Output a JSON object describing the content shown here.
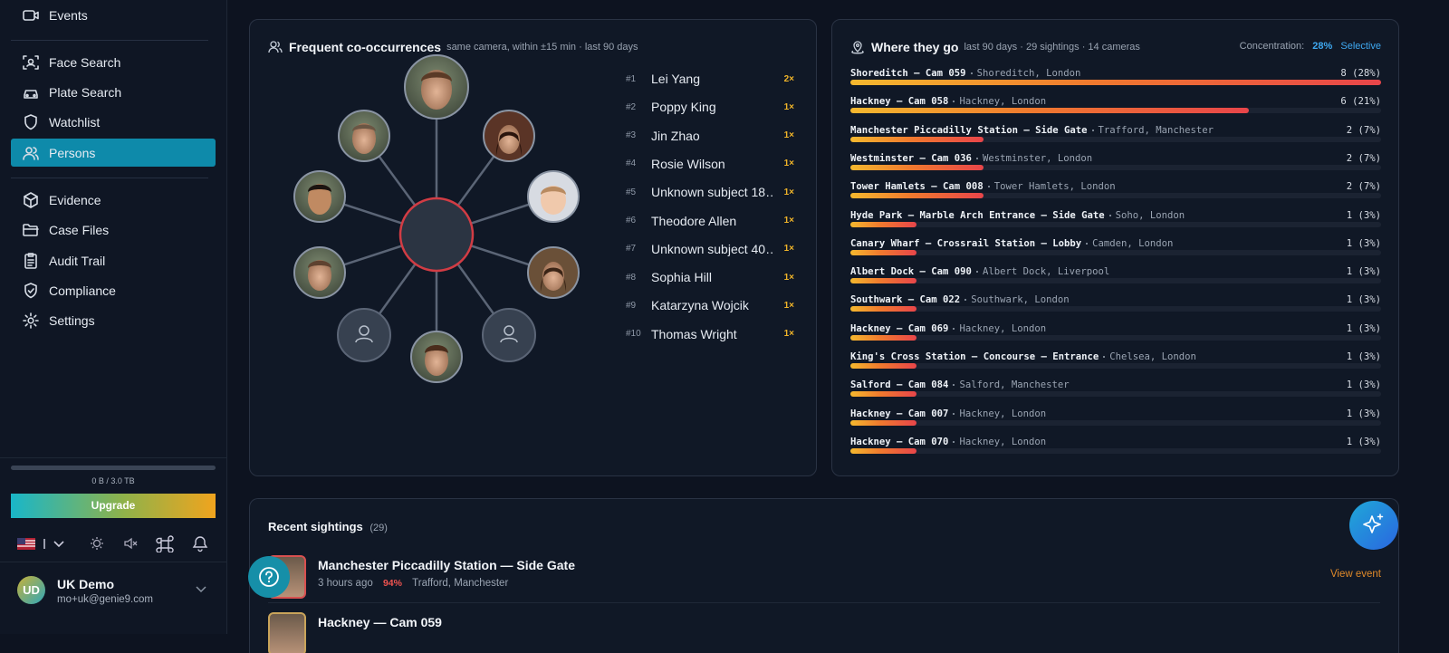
{
  "sidebar": {
    "nav": [
      {
        "label": "Events"
      },
      {
        "label": "Face Search"
      },
      {
        "label": "Plate Search"
      },
      {
        "label": "Watchlist"
      },
      {
        "label": "Persons",
        "active": true
      },
      {
        "label": "Evidence"
      },
      {
        "label": "Case Files"
      },
      {
        "label": "Audit Trail"
      },
      {
        "label": "Compliance"
      },
      {
        "label": "Settings"
      }
    ],
    "storage_label": "0 B / 3.0 TB",
    "upgrade": "Upgrade",
    "user": {
      "initials": "UD",
      "name": "UK Demo",
      "email": "mo+uk@genie9.com"
    }
  },
  "co_occurrences": {
    "title": "Frequent co-occurrences",
    "subtitle": "same camera, within ±15 min · last 90 days",
    "items": [
      {
        "rank": "#1",
        "name": "Lei Yang",
        "count": "2×"
      },
      {
        "rank": "#2",
        "name": "Poppy King",
        "count": "1×"
      },
      {
        "rank": "#3",
        "name": "Jin Zhao",
        "count": "1×"
      },
      {
        "rank": "#4",
        "name": "Rosie Wilson",
        "count": "1×"
      },
      {
        "rank": "#5",
        "name": "Unknown subject 18…",
        "count": "1×"
      },
      {
        "rank": "#6",
        "name": "Theodore Allen",
        "count": "1×"
      },
      {
        "rank": "#7",
        "name": "Unknown subject 40…",
        "count": "1×"
      },
      {
        "rank": "#8",
        "name": "Sophia Hill",
        "count": "1×"
      },
      {
        "rank": "#9",
        "name": "Katarzyna Wojcik",
        "count": "1×"
      },
      {
        "rank": "#10",
        "name": "Thomas Wright",
        "count": "1×"
      }
    ]
  },
  "where_they_go": {
    "title": "Where they go",
    "subtitle": "last 90 days · 29 sightings · 14 cameras",
    "concentration_label": "Concentration:",
    "concentration_value": "28%",
    "concentration_tag": "Selective",
    "rows": [
      {
        "camera": "Shoreditch — Cam 059",
        "location": "Shoreditch, London",
        "count": 8,
        "count_label": "8 (28%)"
      },
      {
        "camera": "Hackney — Cam 058",
        "location": "Hackney, London",
        "count": 6,
        "count_label": "6 (21%)"
      },
      {
        "camera": "Manchester Piccadilly Station — Side Gate",
        "location": "Trafford, Manchester",
        "count": 2,
        "count_label": "2 (7%)"
      },
      {
        "camera": "Westminster — Cam 036",
        "location": "Westminster, London",
        "count": 2,
        "count_label": "2 (7%)"
      },
      {
        "camera": "Tower Hamlets — Cam 008",
        "location": "Tower Hamlets, London",
        "count": 2,
        "count_label": "2 (7%)"
      },
      {
        "camera": "Hyde Park — Marble Arch Entrance — Side Gate",
        "location": "Soho, London",
        "count": 1,
        "count_label": "1 (3%)"
      },
      {
        "camera": "Canary Wharf — Crossrail Station — Lobby",
        "location": "Camden, London",
        "count": 1,
        "count_label": "1 (3%)"
      },
      {
        "camera": "Albert Dock — Cam 090",
        "location": "Albert Dock, Liverpool",
        "count": 1,
        "count_label": "1 (3%)"
      },
      {
        "camera": "Southwark — Cam 022",
        "location": "Southwark, London",
        "count": 1,
        "count_label": "1 (3%)"
      },
      {
        "camera": "Hackney — Cam 069",
        "location": "Hackney, London",
        "count": 1,
        "count_label": "1 (3%)"
      },
      {
        "camera": "King's Cross Station — Concourse — Entrance",
        "location": "Chelsea, London",
        "count": 1,
        "count_label": "1 (3%)"
      },
      {
        "camera": "Salford — Cam 084",
        "location": "Salford, Manchester",
        "count": 1,
        "count_label": "1 (3%)"
      },
      {
        "camera": "Hackney — Cam 007",
        "location": "Hackney, London",
        "count": 1,
        "count_label": "1 (3%)"
      },
      {
        "camera": "Hackney — Cam 070",
        "location": "Hackney, London",
        "count": 1,
        "count_label": "1 (3%)"
      }
    ]
  },
  "recent_sightings": {
    "title": "Recent sightings",
    "count": "(29)",
    "items": [
      {
        "camera": "Manchester Piccadilly Station — Side Gate",
        "time": "3 hours ago",
        "confidence": "94%",
        "location": "Trafford, Manchester",
        "action": "View event"
      },
      {
        "camera": "Hackney — Cam 059"
      }
    ]
  }
}
